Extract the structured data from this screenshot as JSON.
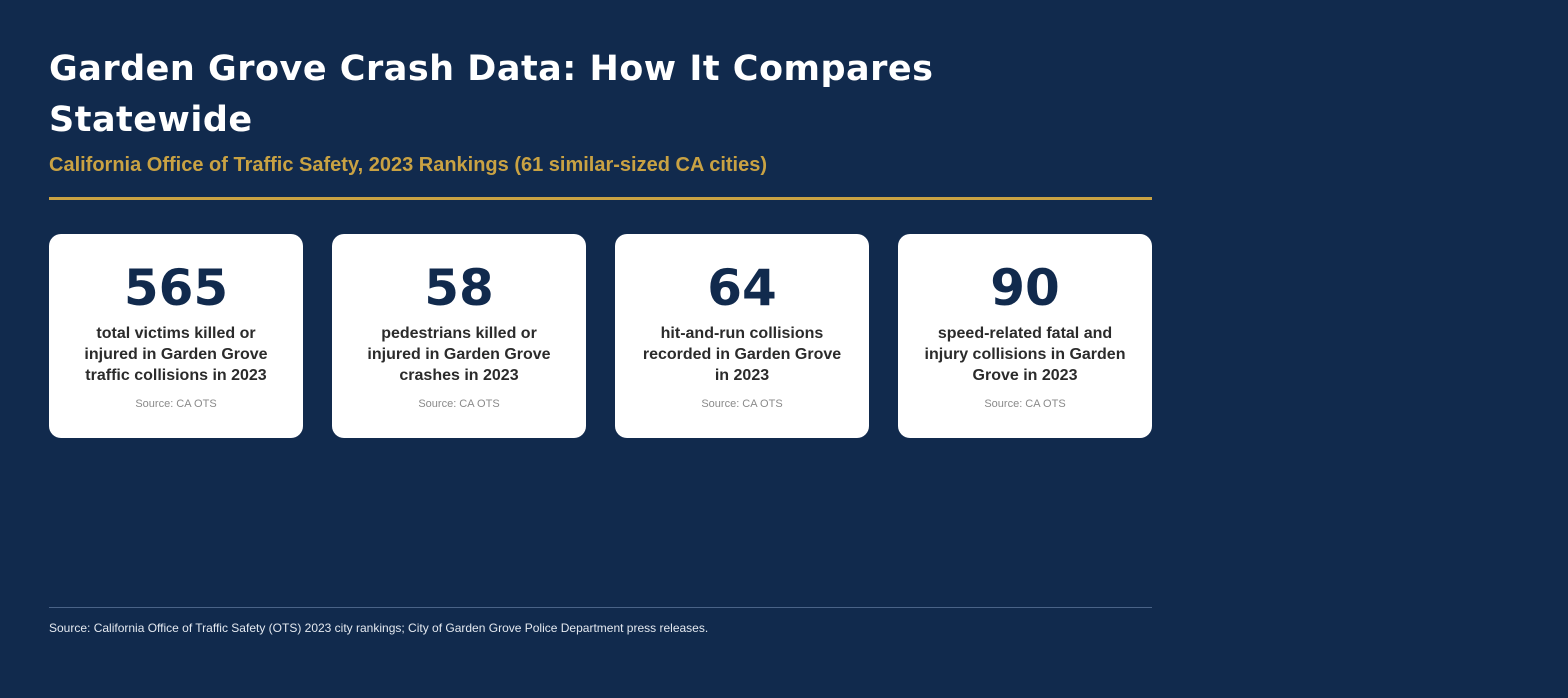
{
  "header": {
    "title": "Garden Grove Crash Data: How It Compares Statewide",
    "subtitle": "California Office of Traffic Safety, 2023 Rankings (61 similar-sized CA cities)"
  },
  "cards": [
    {
      "value": "565",
      "description": "total victims killed or injured in Garden Grove traffic collisions in 2023",
      "source": "Source: CA OTS"
    },
    {
      "value": "58",
      "description": "pedestrians killed or injured in Garden Grove crashes in 2023",
      "source": "Source: CA OTS"
    },
    {
      "value": "64",
      "description": "hit-and-run collisions recorded in Garden Grove in 2023",
      "source": "Source: CA OTS"
    },
    {
      "value": "90",
      "description": "speed-related fatal and injury collisions in Garden Grove in 2023",
      "source": "Source: CA OTS"
    }
  ],
  "footer": {
    "source": "Source: California Office of Traffic Safety (OTS) 2023 city rankings; City of Garden Grove Police Department press releases."
  },
  "colors": {
    "background": "#112a4d",
    "accent": "#c9a243",
    "card": "#ffffff",
    "number": "#112a4d"
  }
}
